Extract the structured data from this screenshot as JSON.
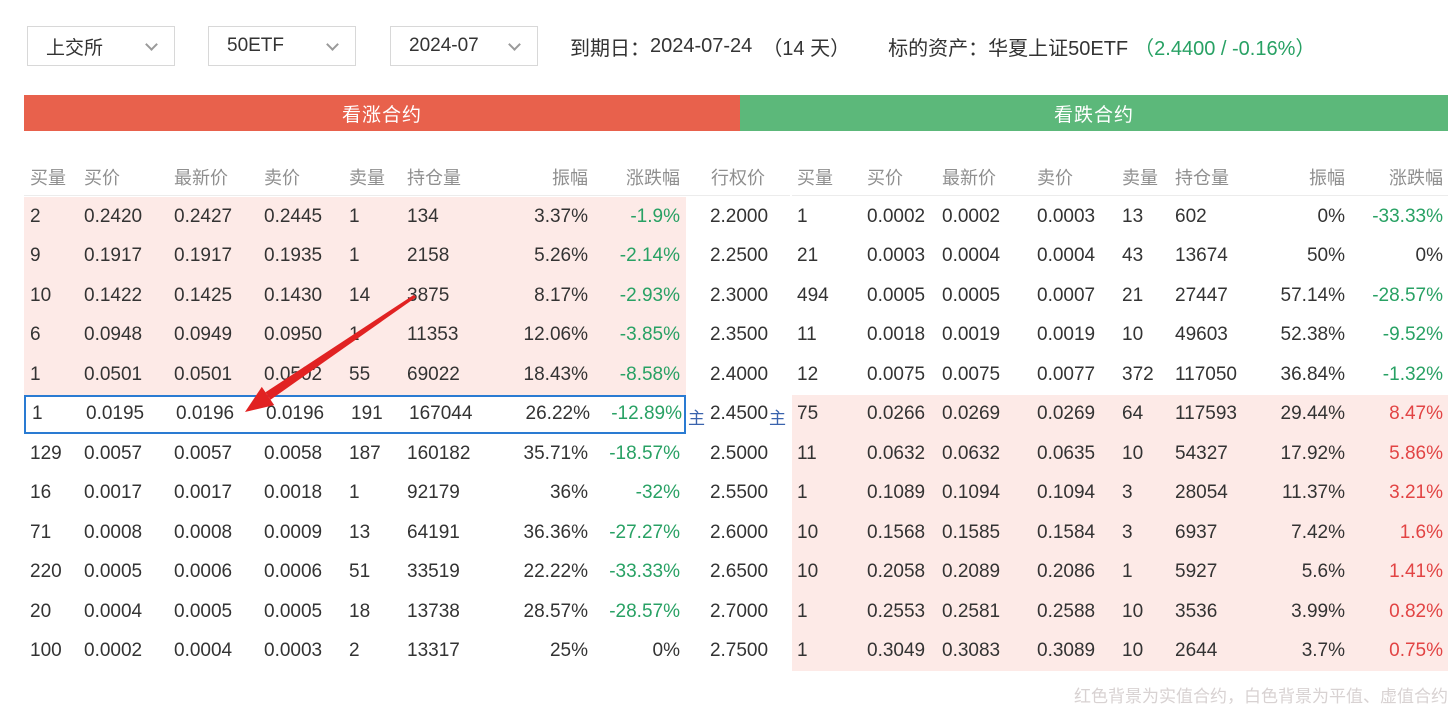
{
  "toolbar": {
    "exchange": "上交所",
    "underlying": "50ETF",
    "month": "2024-07",
    "expiry_label": "到期日：",
    "expiry_value": "2024-07-24",
    "days_left": "（14 天）",
    "asset_label": "标的资产：",
    "asset_name": "华夏上证50ETF",
    "asset_quote": "（2.4400 / -0.16%）"
  },
  "banners": {
    "call": "看涨合约",
    "put": "看跌合约"
  },
  "table": {
    "headers_left": [
      "买量",
      "买价",
      "最新价",
      "卖价",
      "卖量",
      "持仓量",
      "振幅",
      "涨跌幅"
    ],
    "strike_header": "行权价",
    "headers_right": [
      "买量",
      "买价",
      "最新价",
      "卖价",
      "卖量",
      "持仓量",
      "振幅",
      "涨跌幅"
    ],
    "main_marker": "主"
  },
  "rows": [
    {
      "call": [
        "2",
        "0.2420",
        "0.2427",
        "0.2445",
        "1",
        "134",
        "3.37%",
        "-1.9%"
      ],
      "strike": "2.2000",
      "main": false,
      "highlight": false,
      "call_itm": true,
      "put_itm": false,
      "put": [
        "1",
        "0.0002",
        "0.0002",
        "0.0003",
        "13",
        "602",
        "0%",
        "-33.33%"
      ]
    },
    {
      "call": [
        "9",
        "0.1917",
        "0.1917",
        "0.1935",
        "1",
        "2158",
        "5.26%",
        "-2.14%"
      ],
      "strike": "2.2500",
      "main": false,
      "highlight": false,
      "call_itm": true,
      "put_itm": false,
      "put": [
        "21",
        "0.0003",
        "0.0004",
        "0.0004",
        "43",
        "13674",
        "50%",
        "0%"
      ]
    },
    {
      "call": [
        "10",
        "0.1422",
        "0.1425",
        "0.1430",
        "14",
        "3875",
        "8.17%",
        "-2.93%"
      ],
      "strike": "2.3000",
      "main": false,
      "highlight": false,
      "call_itm": true,
      "put_itm": false,
      "put": [
        "494",
        "0.0005",
        "0.0005",
        "0.0007",
        "21",
        "27447",
        "57.14%",
        "-28.57%"
      ]
    },
    {
      "call": [
        "6",
        "0.0948",
        "0.0949",
        "0.0950",
        "1",
        "11353",
        "12.06%",
        "-3.85%"
      ],
      "strike": "2.3500",
      "main": false,
      "highlight": false,
      "call_itm": true,
      "put_itm": false,
      "put": [
        "11",
        "0.0018",
        "0.0019",
        "0.0019",
        "10",
        "49603",
        "52.38%",
        "-9.52%"
      ]
    },
    {
      "call": [
        "1",
        "0.0501",
        "0.0501",
        "0.0502",
        "55",
        "69022",
        "18.43%",
        "-8.58%"
      ],
      "strike": "2.4000",
      "main": false,
      "highlight": false,
      "call_itm": true,
      "put_itm": false,
      "put": [
        "12",
        "0.0075",
        "0.0075",
        "0.0077",
        "372",
        "117050",
        "36.84%",
        "-1.32%"
      ]
    },
    {
      "call": [
        "1",
        "0.0195",
        "0.0196",
        "0.0196",
        "191",
        "167044",
        "26.22%",
        "-12.89%"
      ],
      "strike": "2.4500",
      "main": true,
      "highlight": true,
      "call_itm": false,
      "put_itm": true,
      "put": [
        "75",
        "0.0266",
        "0.0269",
        "0.0269",
        "64",
        "117593",
        "29.44%",
        "8.47%"
      ]
    },
    {
      "call": [
        "129",
        "0.0057",
        "0.0057",
        "0.0058",
        "187",
        "160182",
        "35.71%",
        "-18.57%"
      ],
      "strike": "2.5000",
      "main": false,
      "highlight": false,
      "call_itm": false,
      "put_itm": true,
      "put": [
        "11",
        "0.0632",
        "0.0632",
        "0.0635",
        "10",
        "54327",
        "17.92%",
        "5.86%"
      ]
    },
    {
      "call": [
        "16",
        "0.0017",
        "0.0017",
        "0.0018",
        "1",
        "92179",
        "36%",
        "-32%"
      ],
      "strike": "2.5500",
      "main": false,
      "highlight": false,
      "call_itm": false,
      "put_itm": true,
      "put": [
        "1",
        "0.1089",
        "0.1094",
        "0.1094",
        "3",
        "28054",
        "11.37%",
        "3.21%"
      ]
    },
    {
      "call": [
        "71",
        "0.0008",
        "0.0008",
        "0.0009",
        "13",
        "64191",
        "36.36%",
        "-27.27%"
      ],
      "strike": "2.6000",
      "main": false,
      "highlight": false,
      "call_itm": false,
      "put_itm": true,
      "put": [
        "10",
        "0.1568",
        "0.1585",
        "0.1584",
        "3",
        "6937",
        "7.42%",
        "1.6%"
      ]
    },
    {
      "call": [
        "220",
        "0.0005",
        "0.0006",
        "0.0006",
        "51",
        "33519",
        "22.22%",
        "-33.33%"
      ],
      "strike": "2.6500",
      "main": false,
      "highlight": false,
      "call_itm": false,
      "put_itm": true,
      "put": [
        "10",
        "0.2058",
        "0.2089",
        "0.2086",
        "1",
        "5927",
        "5.6%",
        "1.41%"
      ]
    },
    {
      "call": [
        "20",
        "0.0004",
        "0.0005",
        "0.0005",
        "18",
        "13738",
        "28.57%",
        "-28.57%"
      ],
      "strike": "2.7000",
      "main": false,
      "highlight": false,
      "call_itm": false,
      "put_itm": true,
      "put": [
        "1",
        "0.2553",
        "0.2581",
        "0.2588",
        "10",
        "3536",
        "3.99%",
        "0.82%"
      ]
    },
    {
      "call": [
        "100",
        "0.0002",
        "0.0004",
        "0.0003",
        "2",
        "13317",
        "25%",
        "0%"
      ],
      "strike": "2.7500",
      "main": false,
      "highlight": false,
      "call_itm": false,
      "put_itm": true,
      "put": [
        "1",
        "0.3049",
        "0.3083",
        "0.3089",
        "10",
        "2644",
        "3.7%",
        "0.75%"
      ]
    }
  ],
  "footnote": "红色背景为实值合约，白色背景为平值、虚值合约",
  "colors": {
    "call_banner": "#e8614c",
    "put_banner": "#5cb87a",
    "itm_background": "#fdeae7",
    "up_text": "#e24444",
    "down_text": "#28a164",
    "highlight_border": "#2a7bd2",
    "underlying_quote": "#28a164",
    "arrow": "#e12222"
  }
}
